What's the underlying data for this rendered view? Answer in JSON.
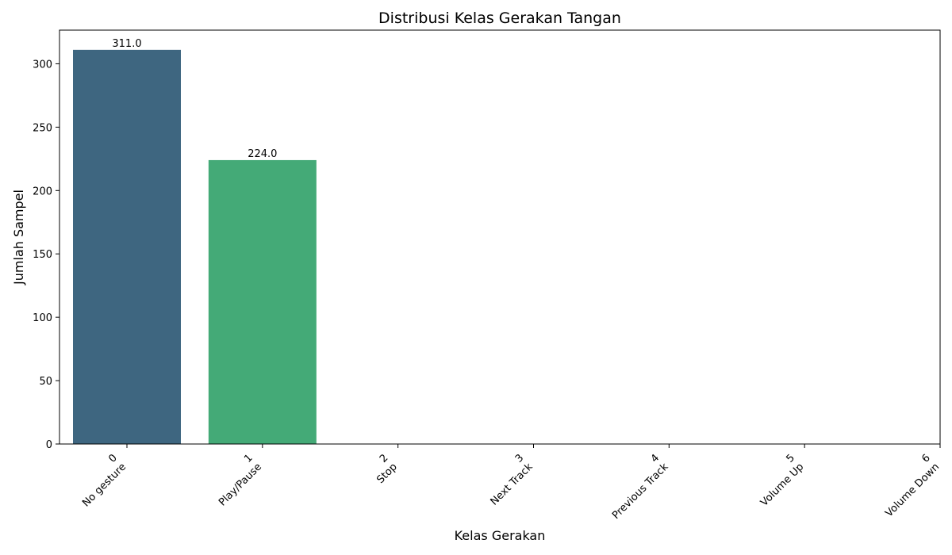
{
  "chart_data": {
    "type": "bar",
    "title": "Distribusi Kelas Gerakan Tangan",
    "xlabel": "Kelas Gerakan",
    "ylabel": "Jumlah Sampel",
    "categories": [
      "0\nNo gesture",
      "1\nPlay/Pause",
      "2\nStop",
      "3\nNext Track",
      "4\nPrevious Track",
      "5\nVolume Up",
      "6\nVolume Down"
    ],
    "category_lines": [
      [
        "0",
        "No gesture"
      ],
      [
        "1",
        "Play/Pause"
      ],
      [
        "2",
        "Stop"
      ],
      [
        "3",
        "Next Track"
      ],
      [
        "4",
        "Previous Track"
      ],
      [
        "5",
        "Volume Up"
      ],
      [
        "6",
        "Volume Down"
      ]
    ],
    "values": [
      311,
      224,
      0,
      0,
      0,
      0,
      0
    ],
    "value_labels": [
      "311.0",
      "224.0",
      null,
      null,
      null,
      null,
      null
    ],
    "bar_colors": [
      "#3e6680",
      "#44aa77",
      "#44aa77",
      "#44aa77",
      "#44aa77",
      "#44aa77",
      "#44aa77"
    ],
    "ylim": [
      0,
      326.55
    ],
    "yticks": [
      0,
      50,
      100,
      150,
      200,
      250,
      300
    ],
    "grid": false,
    "legend": null
  }
}
